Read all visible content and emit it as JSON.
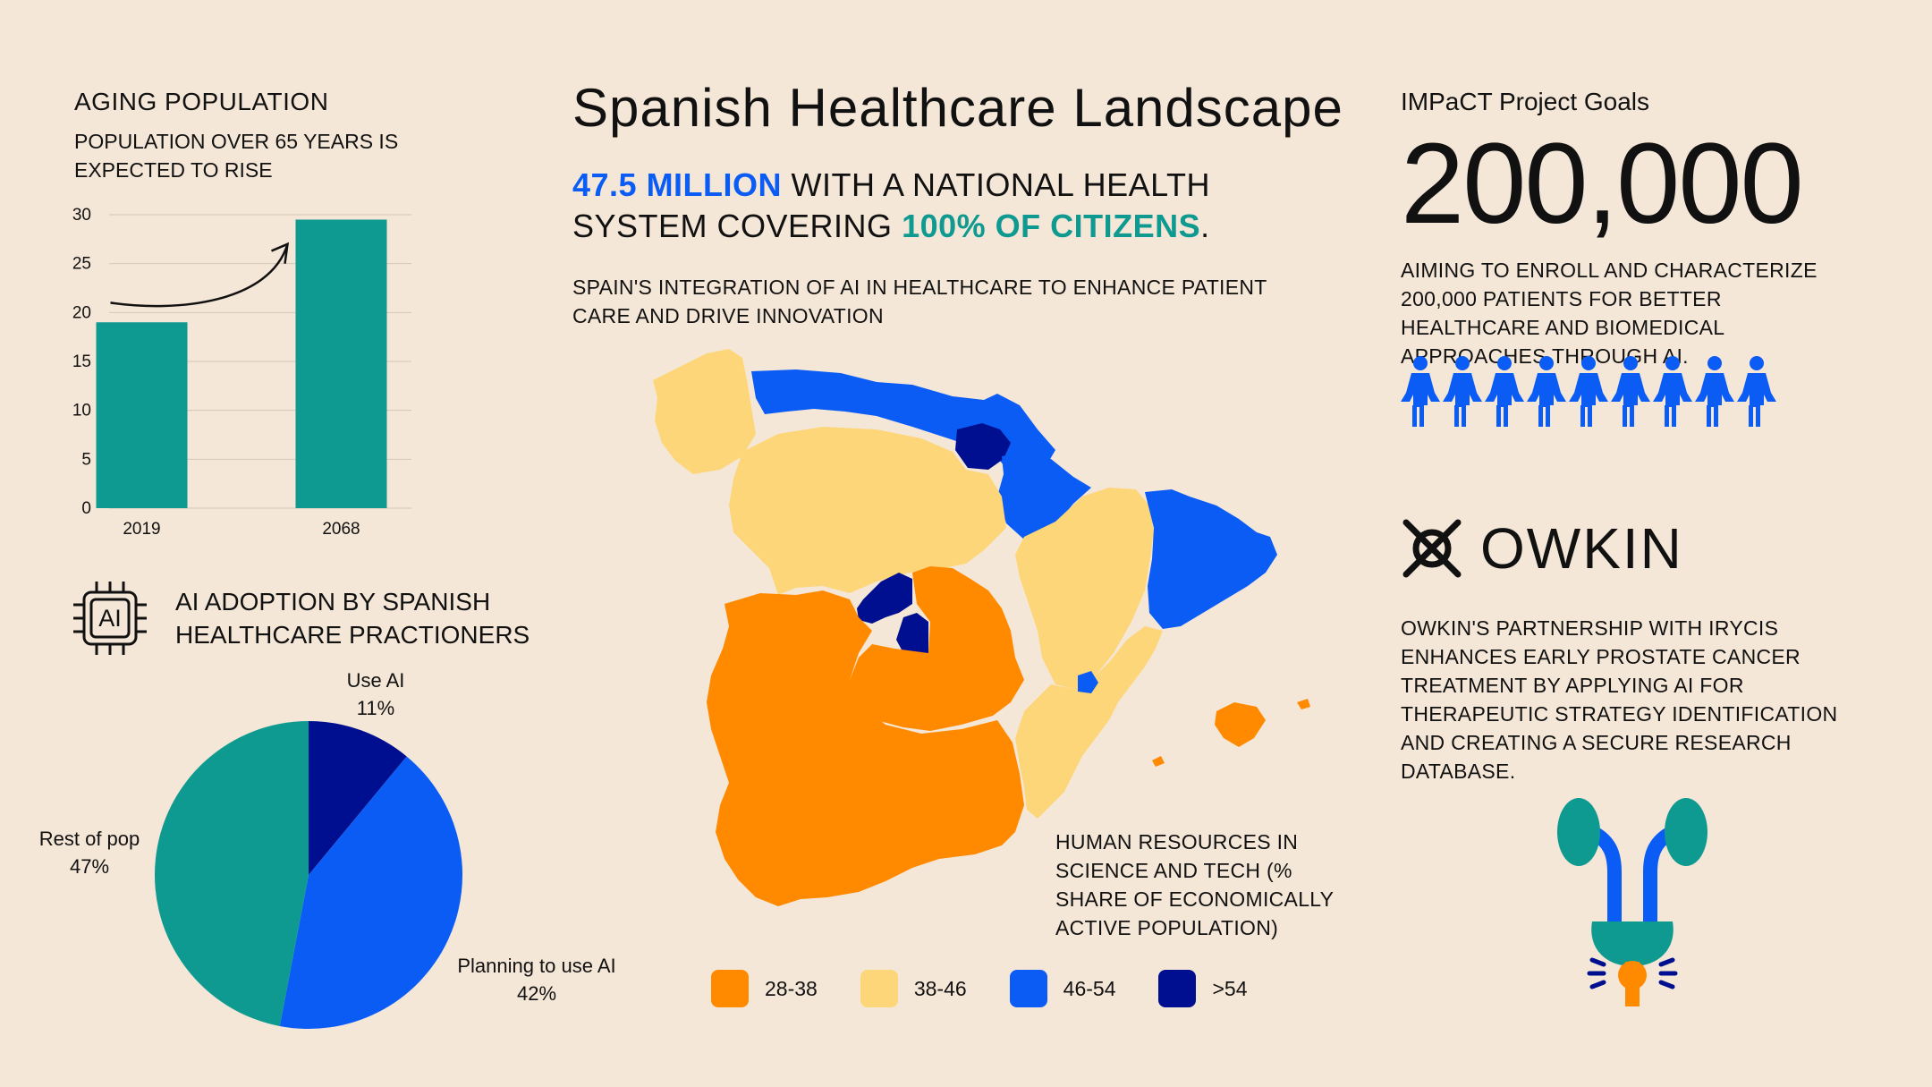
{
  "page": {
    "title": "Spanish Healthcare Landscape",
    "headline": {
      "highlight_1": "47.5 MILLION",
      "text_1": " WITH A NATIONAL HEALTH SYSTEM COVERING ",
      "highlight_2": "100% OF CITIZENS",
      "text_2": "."
    },
    "subtitle": "SPAIN'S INTEGRATION OF AI IN HEALTHCARE TO ENHANCE PATIENT CARE AND DRIVE INNOVATION",
    "colors": {
      "background": "#f5e7d7",
      "teal": "#0e9a90",
      "blue": "#0b5cf5",
      "navy": "#000f8f",
      "orange": "#ff8a00",
      "yellow": "#fdd67a"
    }
  },
  "aging": {
    "title": "AGING POPULATION",
    "subtitle": "POPULATION OVER 65 YEARS IS EXPECTED TO RISE"
  },
  "ai_adoption": {
    "icon": "ai-chip-icon",
    "icon_text": "AI",
    "title": "AI ADOPTION BY SPANISH HEALTHCARE PRACTIONERS"
  },
  "map": {
    "caption": "HUMAN RESOURCES IN SCIENCE AND TECH (% SHARE OF ECONOMICALLY ACTIVE POPULATION)",
    "legend": [
      {
        "label": "28-38",
        "color": "#ff8a00"
      },
      {
        "label": "38-46",
        "color": "#fdd67a"
      },
      {
        "label": "46-54",
        "color": "#0b5cf5"
      },
      {
        "label": ">54",
        "color": "#000f8f"
      }
    ]
  },
  "impact": {
    "title": "IMPaCT Project Goals",
    "number": "200,000",
    "description": "AIMING TO ENROLL AND CHARACTERIZE 200,000 PATIENTS FOR BETTER HEALTHCARE AND BIOMEDICAL APPROACHES THROUGH AI.",
    "people_icon": "person-icon",
    "people_count": 9
  },
  "owkin": {
    "logo_text": "OWKIN",
    "logo_icon": "owkin-logo-icon",
    "description": "OWKIN'S PARTNERSHIP WITH IRYCIS ENHANCES EARLY PROSTATE CANCER TREATMENT BY APPLYING AI FOR THERAPEUTIC STRATEGY IDENTIFICATION AND CREATING A SECURE RESEARCH DATABASE.",
    "illustration_icon": "urinary-system-icon"
  },
  "chart_data": [
    {
      "type": "bar",
      "categories": [
        "2019",
        "2068"
      ],
      "values": [
        19,
        29.5
      ],
      "ylim": [
        0,
        30
      ],
      "yticks": [
        0,
        5,
        10,
        15,
        20,
        25,
        30
      ],
      "color": "#0e9a90",
      "grid": true
    },
    {
      "type": "pie",
      "slices": [
        {
          "label": "Use AI",
          "value": 11,
          "display": "11%",
          "color": "#000f8f"
        },
        {
          "label": "Planning to use AI",
          "value": 42,
          "display": "42%",
          "color": "#0b5cf5"
        },
        {
          "label": "Rest of pop",
          "value": 47,
          "display": "47%",
          "color": "#0e9a90"
        }
      ]
    }
  ]
}
